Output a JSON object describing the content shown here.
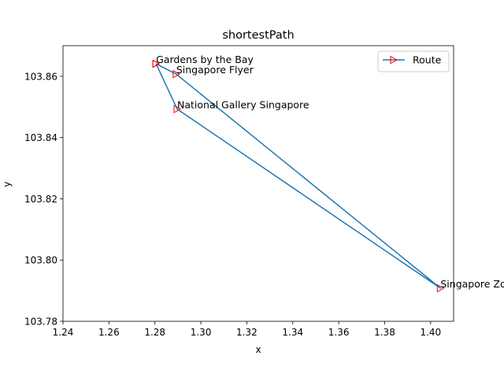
{
  "chart_data": {
    "type": "line",
    "title": "shortestPath",
    "xlabel": "x",
    "ylabel": "y",
    "xlim": [
      1.24,
      1.41
    ],
    "ylim": [
      103.78,
      103.87
    ],
    "xticks": [
      "1.24",
      "1.26",
      "1.28",
      "1.30",
      "1.32",
      "1.34",
      "1.36",
      "1.38",
      "1.40"
    ],
    "yticks": [
      "103.78",
      "103.80",
      "103.82",
      "103.84",
      "103.86"
    ],
    "grid": false,
    "legend_position": "top-right",
    "series": [
      {
        "name": "Route",
        "color": "#1f77b4",
        "marker": "triangle-right",
        "marker_color": "#ff0000",
        "points": [
          {
            "x": 1.2805,
            "y": 103.8641,
            "label": "Gardens by the Bay"
          },
          {
            "x": 1.2897,
            "y": 103.8493,
            "label": "National Gallery Singapore"
          },
          {
            "x": 1.4043,
            "y": 103.7908,
            "label": "Singapore Zoo"
          },
          {
            "x": 1.2893,
            "y": 103.8607,
            "label": "Singapore Flyer"
          },
          {
            "x": 1.2805,
            "y": 103.8641,
            "label": ""
          }
        ]
      }
    ]
  }
}
